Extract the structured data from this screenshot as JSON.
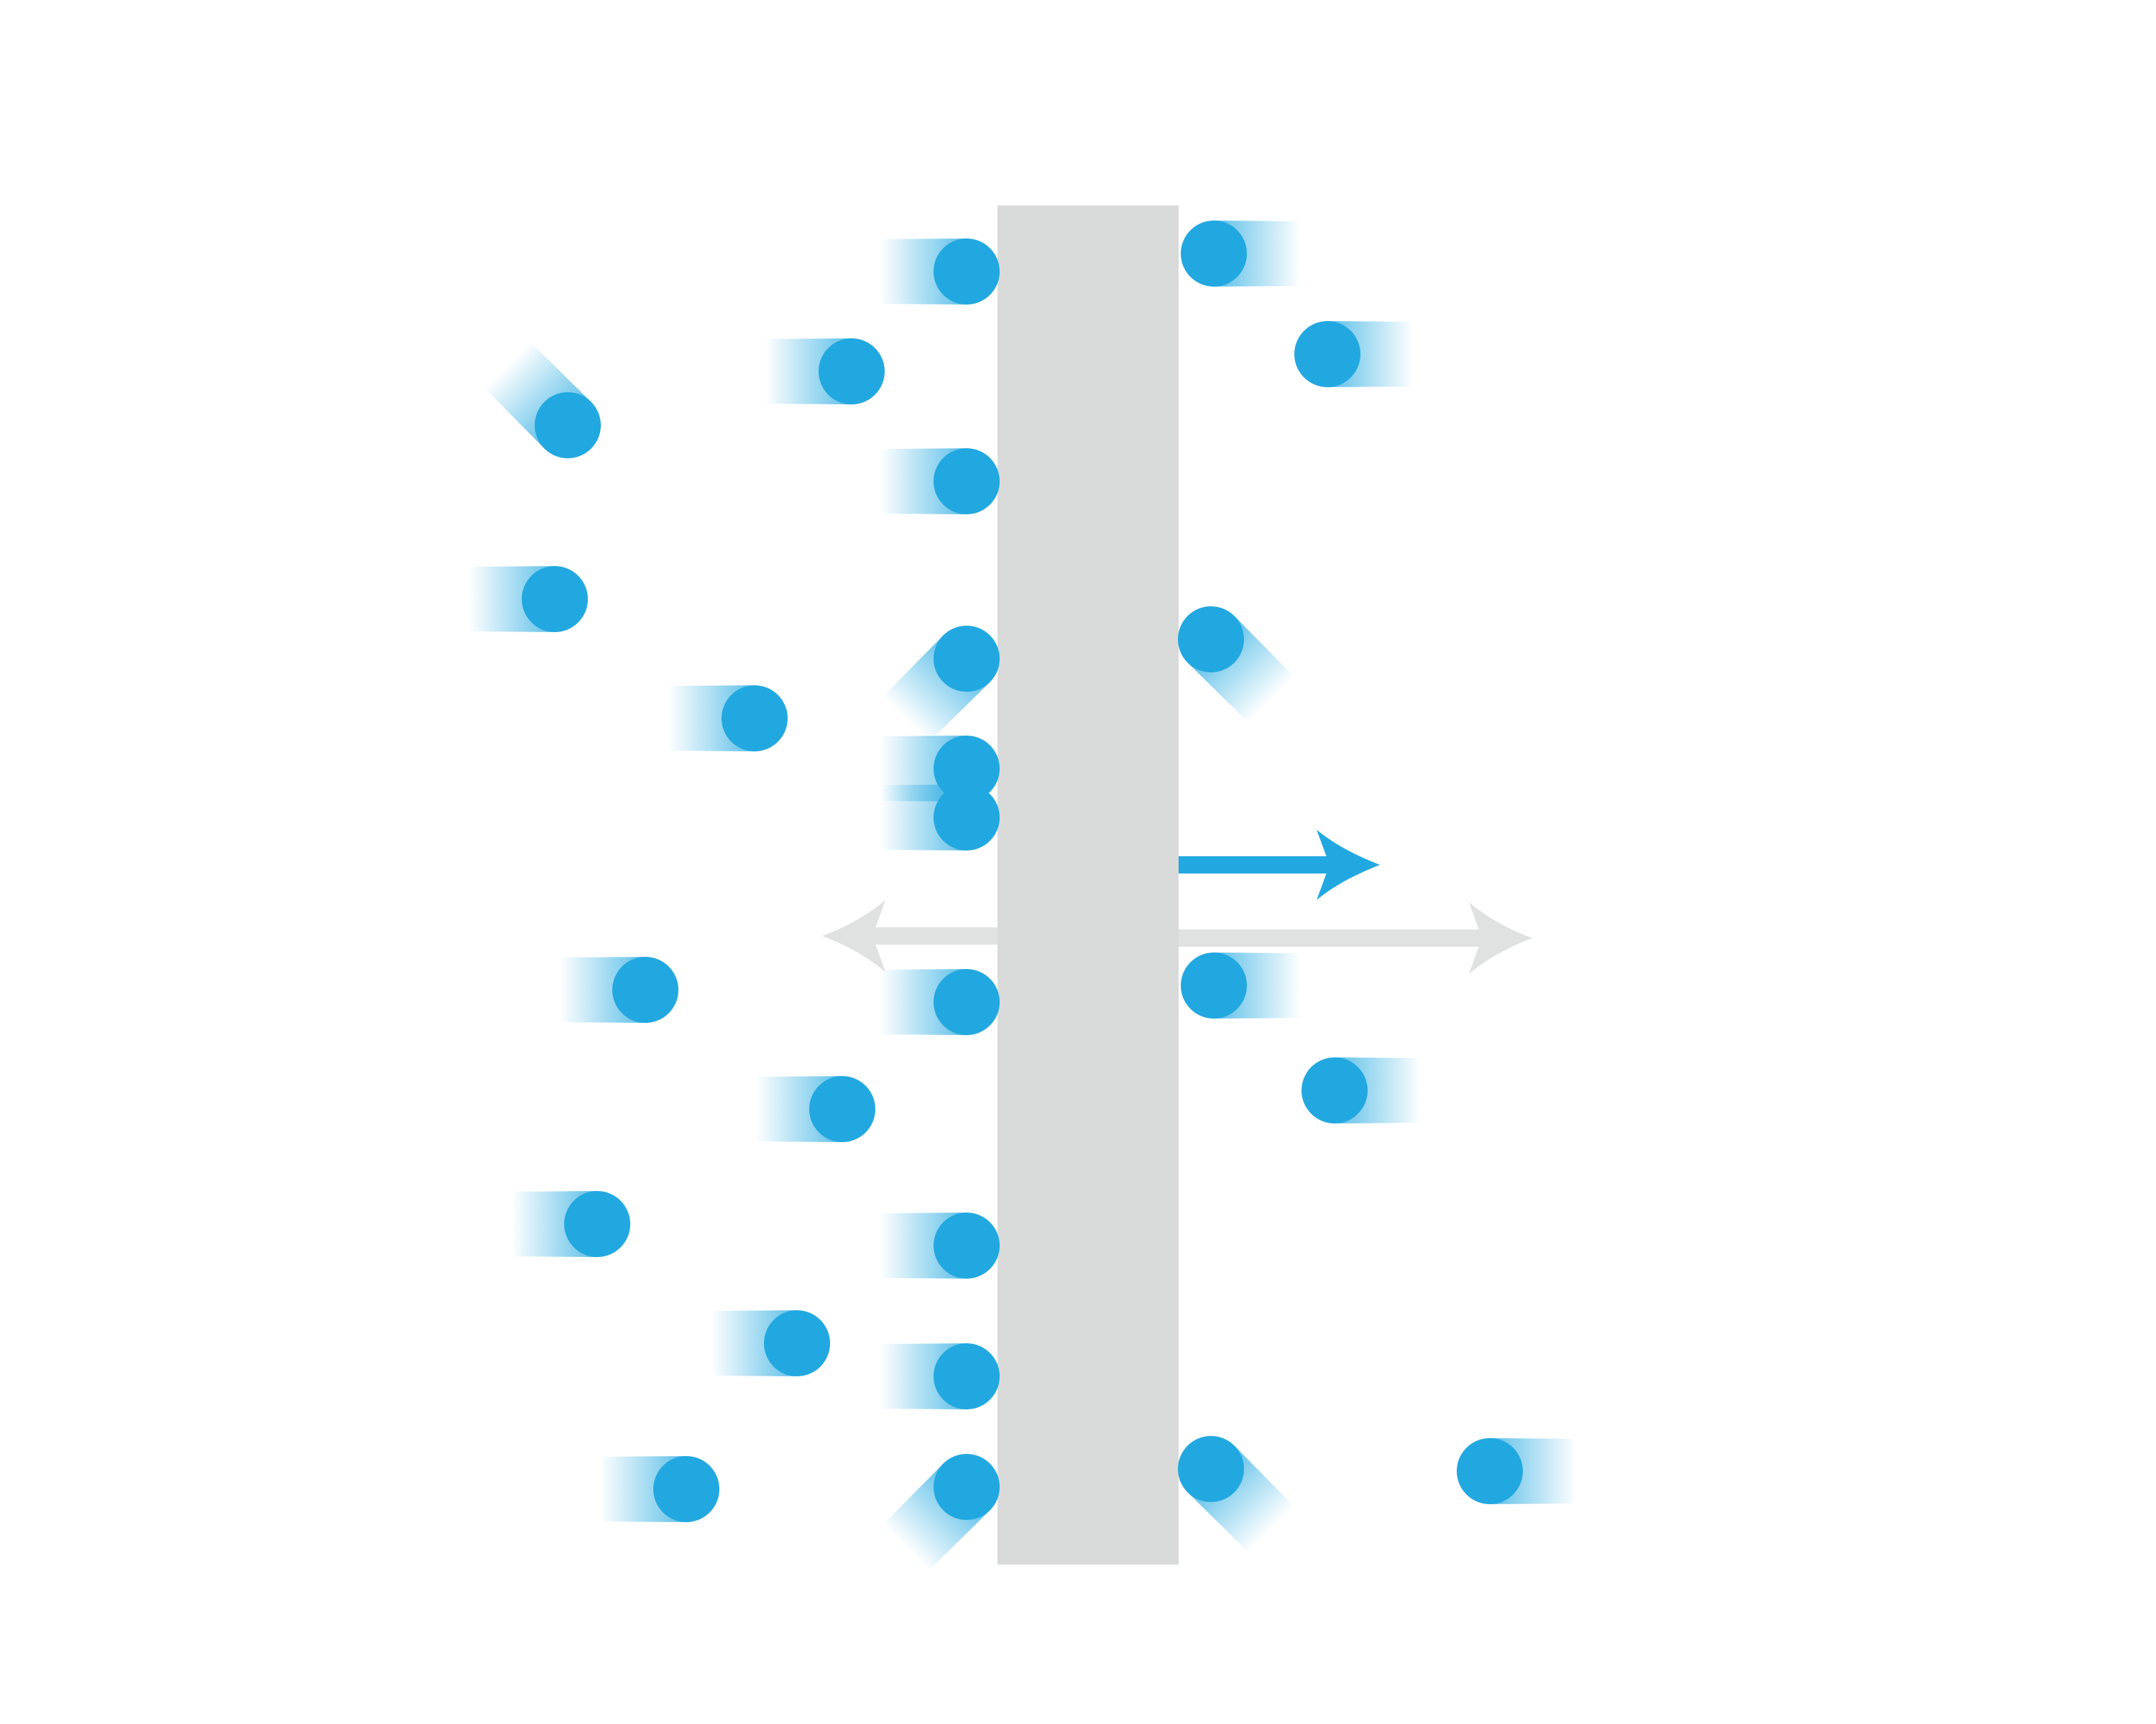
{
  "colors": {
    "background": "#ffffff",
    "barrier": "#d9dada",
    "particle": "#22a8e0",
    "net_arrow": "#22a8e0",
    "force_arrow": "#e0e1e1"
  },
  "particles": [
    {
      "dir": "left"
    },
    {
      "dir": "left"
    },
    {
      "dir": "left"
    },
    {
      "dir": "up-left"
    },
    {
      "dir": "left"
    },
    {
      "dir": "down-left"
    },
    {
      "dir": "left"
    },
    {
      "dir": "left"
    },
    {
      "dir": "left"
    },
    {
      "dir": "left"
    },
    {
      "dir": "left"
    },
    {
      "dir": "left"
    },
    {
      "dir": "left"
    },
    {
      "dir": "down-left"
    },
    {
      "dir": "left"
    },
    {
      "dir": "left"
    },
    {
      "dir": "left"
    },
    {
      "dir": "left"
    },
    {
      "dir": "right"
    },
    {
      "dir": "right"
    },
    {
      "dir": "down-right"
    },
    {
      "dir": "right"
    },
    {
      "dir": "right"
    },
    {
      "dir": "down-right"
    },
    {
      "dir": "right"
    }
  ]
}
